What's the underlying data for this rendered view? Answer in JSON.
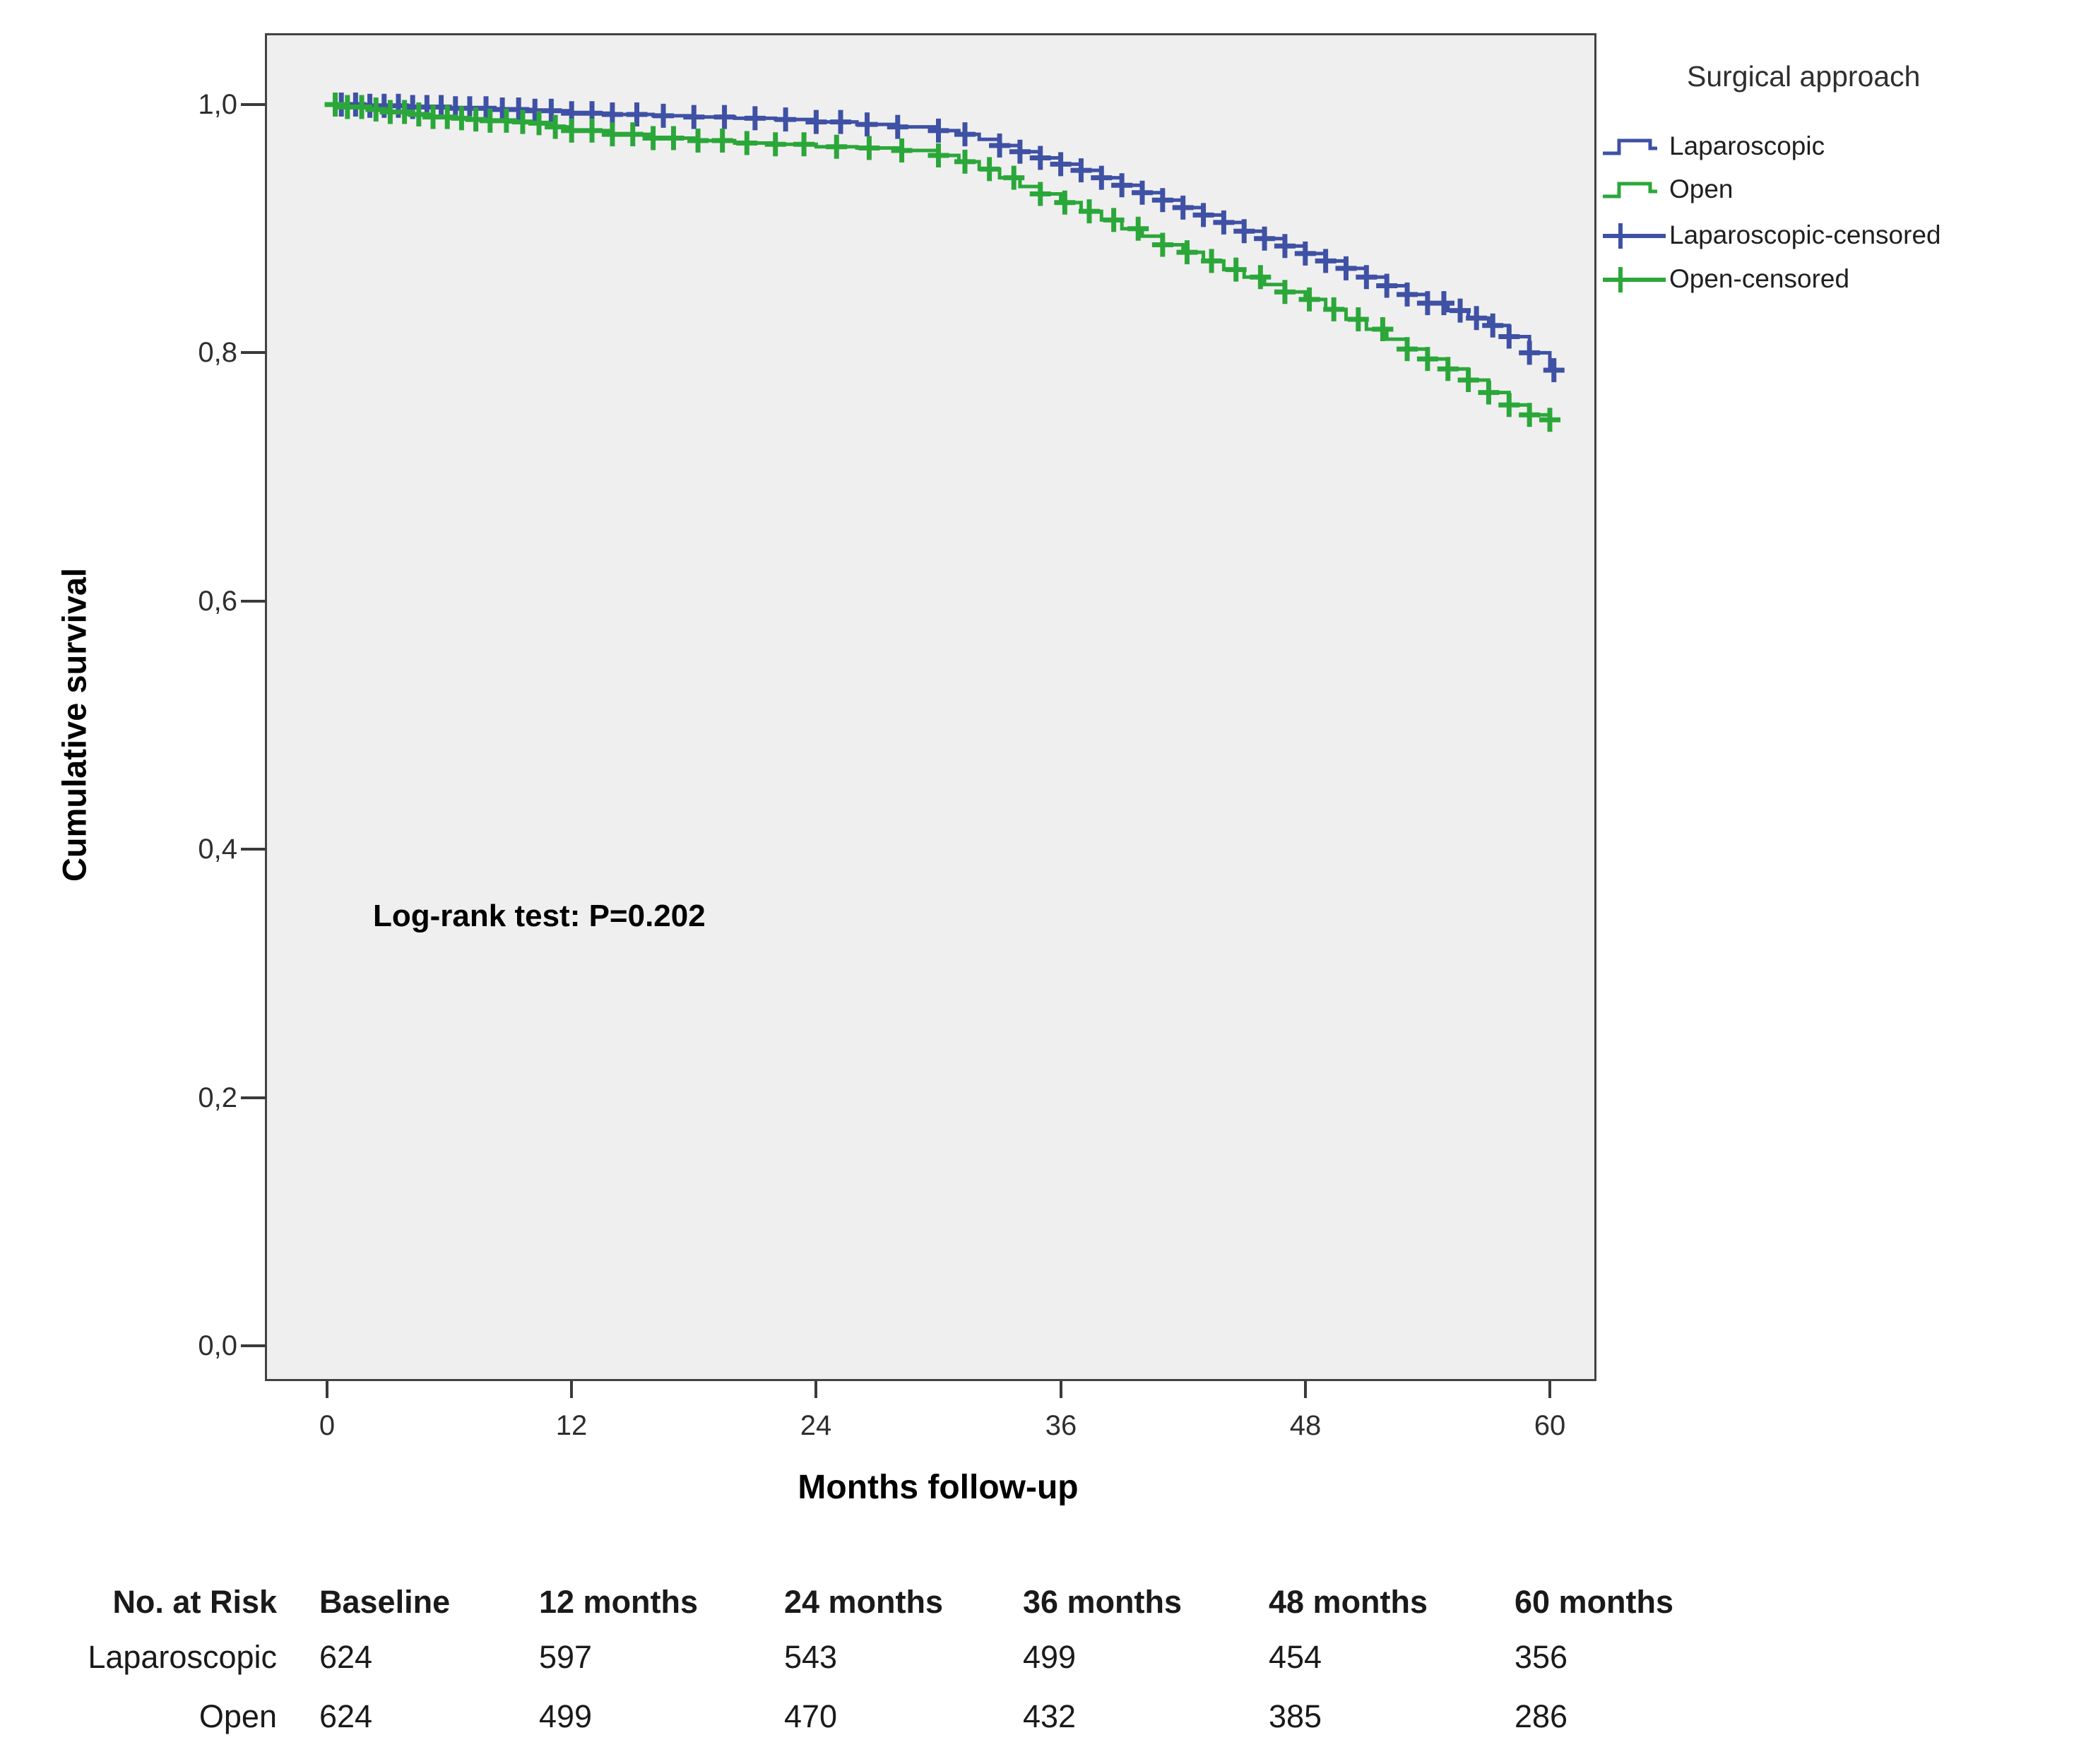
{
  "chart_data": {
    "type": "line",
    "subtype": "kaplan-meier-step",
    "ylabel": "Cumulative survival",
    "xlabel": "Months follow-up",
    "annotation": "Log-rank test: P=0.202",
    "plot_background": "#f0efef",
    "grid": false,
    "xlim": [
      0,
      62
    ],
    "ylim": [
      0,
      1.05
    ],
    "xticks": [
      0,
      12,
      24,
      36,
      48,
      60
    ],
    "xtick_labels": [
      "0",
      "12",
      "24",
      "36",
      "48",
      "60"
    ],
    "yticks": [
      0.0,
      0.2,
      0.4,
      0.6,
      0.8,
      1.0
    ],
    "ytick_labels": [
      "0,0",
      "0,2",
      "0,4",
      "0,6",
      "0,8",
      "1,0"
    ],
    "legend": {
      "title": "Surgical approach",
      "position": "top-right-outside",
      "items": [
        {
          "label": "Laparoscopic",
          "color": "#3E51A5",
          "symbol": "step-line"
        },
        {
          "label": "Open",
          "color": "#2BA73A",
          "symbol": "step-line"
        },
        {
          "label": "Laparoscopic-censored",
          "color": "#3E51A5",
          "symbol": "plus-line"
        },
        {
          "label": "Open-censored",
          "color": "#2BA73A",
          "symbol": "plus-line"
        }
      ]
    },
    "series": [
      {
        "name": "Laparoscopic",
        "color": "#3E51A5",
        "points": [
          [
            0,
            1
          ],
          [
            2,
            0.999
          ],
          [
            4,
            0.998
          ],
          [
            6,
            0.997
          ],
          [
            8,
            0.996
          ],
          [
            10,
            0.995
          ],
          [
            12,
            0.993
          ],
          [
            14,
            0.992
          ],
          [
            16,
            0.991
          ],
          [
            18,
            0.99
          ],
          [
            20,
            0.989
          ],
          [
            22,
            0.988
          ],
          [
            24,
            0.986
          ],
          [
            26,
            0.984
          ],
          [
            28,
            0.982
          ],
          [
            30,
            0.979
          ],
          [
            31,
            0.976
          ],
          [
            32,
            0.972
          ],
          [
            33,
            0.967
          ],
          [
            34,
            0.962
          ],
          [
            35,
            0.957
          ],
          [
            36,
            0.952
          ],
          [
            37,
            0.947
          ],
          [
            38,
            0.941
          ],
          [
            39,
            0.935
          ],
          [
            40,
            0.929
          ],
          [
            41,
            0.923
          ],
          [
            42,
            0.917
          ],
          [
            43,
            0.911
          ],
          [
            44,
            0.905
          ],
          [
            45,
            0.898
          ],
          [
            46,
            0.892
          ],
          [
            47,
            0.886
          ],
          [
            48,
            0.88
          ],
          [
            49,
            0.874
          ],
          [
            50,
            0.868
          ],
          [
            51,
            0.861
          ],
          [
            52,
            0.854
          ],
          [
            53,
            0.847
          ],
          [
            54,
            0.84
          ],
          [
            55,
            0.834
          ],
          [
            56,
            0.828
          ],
          [
            57,
            0.822
          ],
          [
            58,
            0.813
          ],
          [
            59,
            0.8
          ],
          [
            60,
            0.786
          ],
          [
            60.4,
            0.786
          ]
        ],
        "censor_months": [
          0.7,
          1.4,
          2.1,
          2.8,
          3.5,
          4.2,
          4.9,
          5.6,
          6.3,
          7,
          7.8,
          8.6,
          9.4,
          10.2,
          11,
          12,
          13,
          14,
          15.2,
          16.5,
          18,
          19.5,
          21,
          22.5,
          24,
          25.2,
          26.5,
          28,
          30,
          31.3,
          33,
          34,
          35,
          36,
          37,
          38,
          39,
          40,
          41,
          42,
          43,
          44,
          45,
          46,
          47,
          48,
          49,
          50,
          51,
          52,
          53,
          54,
          54.8,
          55.6,
          56.4,
          57.2,
          58,
          59,
          60.2
        ]
      },
      {
        "name": "Open",
        "color": "#2BA73A",
        "points": [
          [
            0,
            1
          ],
          [
            1,
            0.998
          ],
          [
            2,
            0.996
          ],
          [
            3,
            0.994
          ],
          [
            4,
            0.992
          ],
          [
            5,
            0.99
          ],
          [
            6,
            0.989
          ],
          [
            7,
            0.988
          ],
          [
            8,
            0.987
          ],
          [
            9,
            0.986
          ],
          [
            10,
            0.985
          ],
          [
            11,
            0.982
          ],
          [
            12,
            0.979
          ],
          [
            14,
            0.976
          ],
          [
            16,
            0.973
          ],
          [
            18,
            0.971
          ],
          [
            20,
            0.969
          ],
          [
            22,
            0.968
          ],
          [
            24,
            0.966
          ],
          [
            26,
            0.965
          ],
          [
            28,
            0.963
          ],
          [
            30,
            0.959
          ],
          [
            31,
            0.954
          ],
          [
            32,
            0.948
          ],
          [
            33,
            0.941
          ],
          [
            34,
            0.934
          ],
          [
            35,
            0.928
          ],
          [
            36,
            0.921
          ],
          [
            37,
            0.914
          ],
          [
            38,
            0.907
          ],
          [
            39,
            0.9
          ],
          [
            40,
            0.894
          ],
          [
            41,
            0.887
          ],
          [
            42,
            0.881
          ],
          [
            43,
            0.874
          ],
          [
            44,
            0.867
          ],
          [
            45,
            0.861
          ],
          [
            46,
            0.855
          ],
          [
            47,
            0.849
          ],
          [
            48,
            0.843
          ],
          [
            49,
            0.835
          ],
          [
            50,
            0.827
          ],
          [
            51,
            0.819
          ],
          [
            52,
            0.811
          ],
          [
            53,
            0.803
          ],
          [
            54,
            0.795
          ],
          [
            55,
            0.787
          ],
          [
            56,
            0.778
          ],
          [
            57,
            0.768
          ],
          [
            58,
            0.758
          ],
          [
            59,
            0.75
          ],
          [
            60,
            0.746
          ],
          [
            60.3,
            0.746
          ]
        ],
        "censor_months": [
          0.4,
          1,
          1.7,
          2.4,
          3.1,
          3.8,
          4.5,
          5.2,
          5.9,
          6.6,
          7.3,
          8,
          8.8,
          9.6,
          10.4,
          11.2,
          12,
          13,
          14,
          15,
          16,
          17,
          18.2,
          19.4,
          20.6,
          22,
          23.4,
          25,
          26.6,
          28.2,
          30,
          31.3,
          32.5,
          33.7,
          35,
          36.2,
          37.4,
          38.6,
          39.8,
          41,
          42.2,
          43.4,
          44.6,
          45.8,
          47,
          48.2,
          49.4,
          50.6,
          51.8,
          53,
          54,
          55,
          56,
          57,
          58,
          59,
          60
        ]
      }
    ]
  },
  "risk_table": {
    "corner": "No. at Risk",
    "col_headers": [
      "Baseline",
      "12 months",
      "24 months",
      "36 months",
      "48 months",
      "60 months"
    ],
    "rows": [
      {
        "label": "Laparoscopic",
        "values": [
          "624",
          "597",
          "543",
          "499",
          "454",
          "356"
        ]
      },
      {
        "label": "Open",
        "values": [
          "624",
          "499",
          "470",
          "432",
          "385",
          "286"
        ]
      }
    ]
  }
}
